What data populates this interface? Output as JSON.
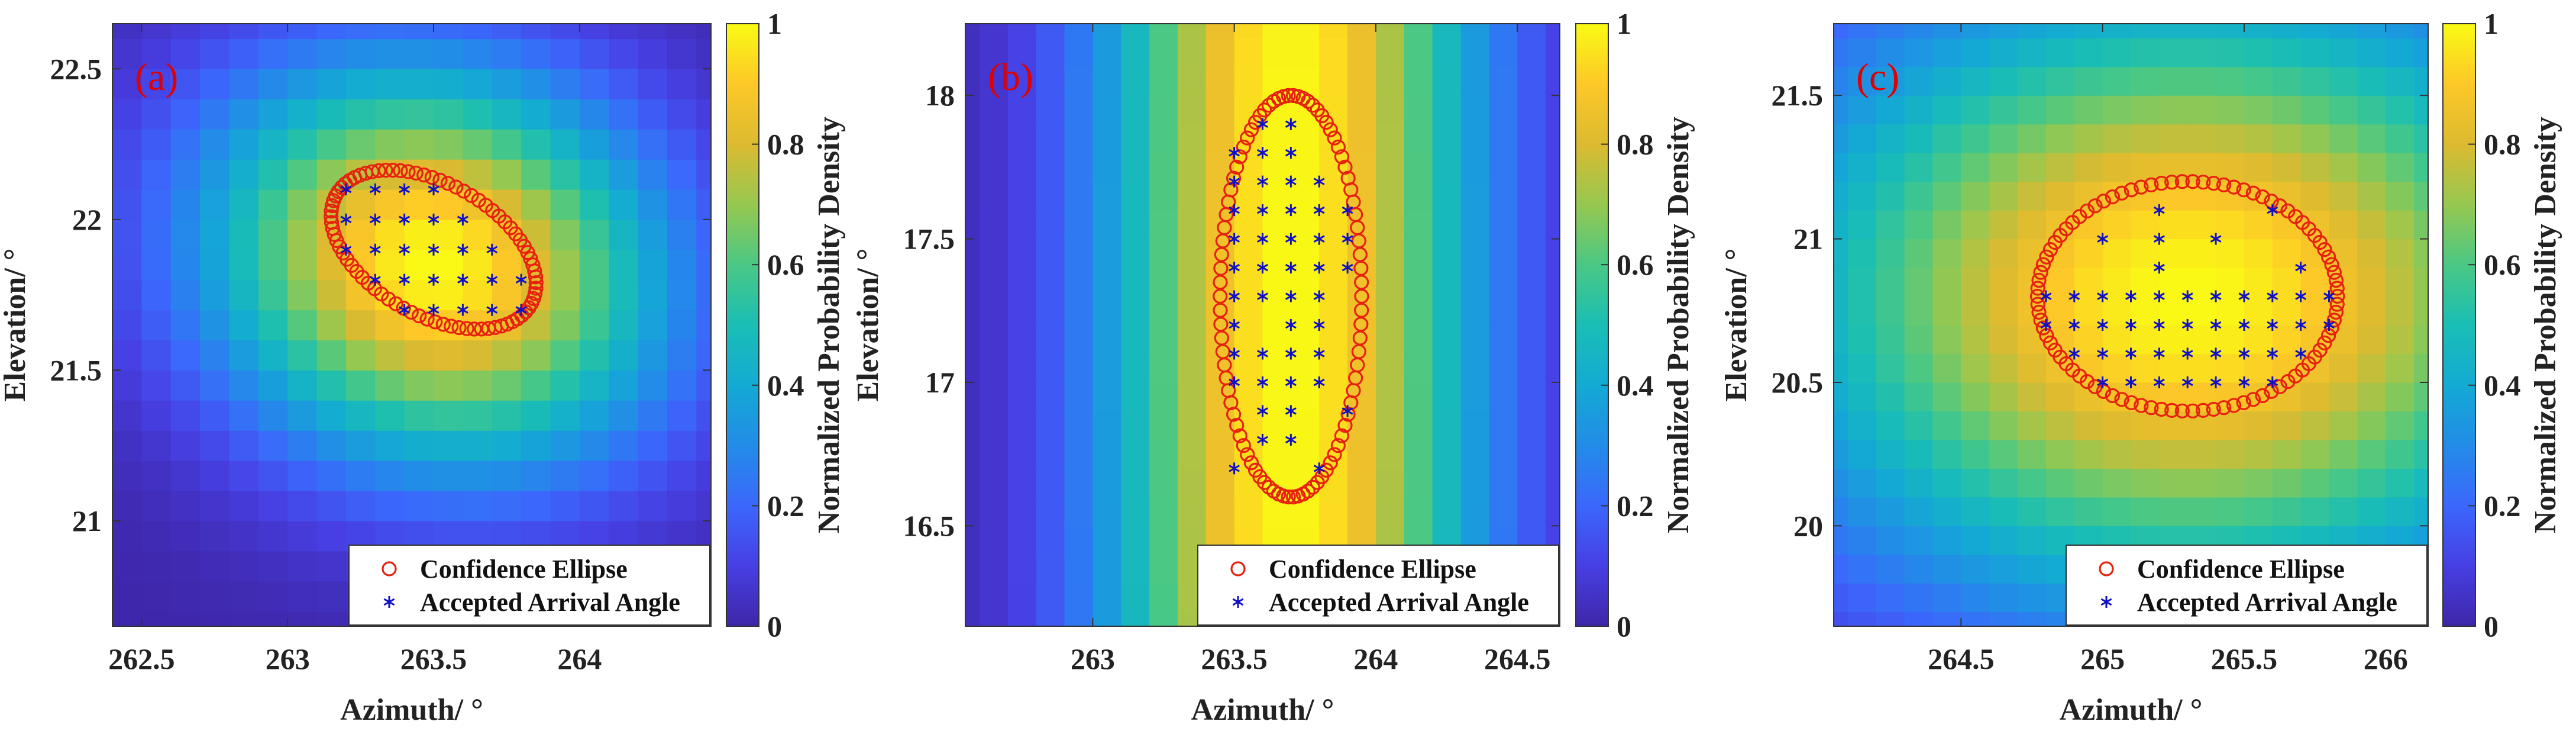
{
  "chart_data": [
    {
      "type": "heatmap",
      "panel_label": "(a)",
      "xlabel": "Azimuth/ °",
      "ylabel": "Elevation/ °",
      "xlim": [
        262.4,
        264.45
      ],
      "ylim": [
        20.65,
        22.65
      ],
      "x_ticks": [
        262.5,
        263,
        263.5,
        264
      ],
      "x_tick_labels": [
        "262.5",
        "263",
        "263.5",
        "264"
      ],
      "y_ticks": [
        21,
        21.5,
        22,
        22.5
      ],
      "y_tick_labels": [
        "21",
        "21.5",
        "22",
        "22.5"
      ],
      "grid_step": [
        0.1,
        0.1
      ],
      "density_center": [
        263.5,
        21.85
      ],
      "density_sigma": [
        0.55,
        0.45
      ],
      "density_rotation_deg": -18,
      "ellipse": {
        "center": [
          263.5,
          21.9
        ],
        "semi_axes": [
          0.38,
          0.22
        ],
        "rotation_deg": -28,
        "markers": 80
      },
      "accepted_points": [
        [
          263.2,
          22.1
        ],
        [
          263.3,
          22.1
        ],
        [
          263.4,
          22.1
        ],
        [
          263.5,
          22.1
        ],
        [
          263.2,
          22.0
        ],
        [
          263.3,
          22.0
        ],
        [
          263.4,
          22.0
        ],
        [
          263.5,
          22.0
        ],
        [
          263.6,
          22.0
        ],
        [
          263.2,
          21.9
        ],
        [
          263.3,
          21.9
        ],
        [
          263.4,
          21.9
        ],
        [
          263.5,
          21.9
        ],
        [
          263.6,
          21.9
        ],
        [
          263.7,
          21.9
        ],
        [
          263.3,
          21.8
        ],
        [
          263.4,
          21.8
        ],
        [
          263.5,
          21.8
        ],
        [
          263.6,
          21.8
        ],
        [
          263.7,
          21.8
        ],
        [
          263.8,
          21.8
        ],
        [
          263.4,
          21.7
        ],
        [
          263.5,
          21.7
        ],
        [
          263.6,
          21.7
        ],
        [
          263.7,
          21.7
        ],
        [
          263.8,
          21.7
        ]
      ],
      "colorbar": {
        "label": "Normalized Probability Density",
        "ticks": [
          0,
          0.2,
          0.4,
          0.6,
          0.8,
          1
        ],
        "tick_labels": [
          "0",
          "0.2",
          "0.4",
          "0.6",
          "0.8",
          "1"
        ]
      },
      "legend": {
        "entries": [
          "Confidence Ellipse",
          "Accepted Arrival Angle"
        ],
        "location": "bottom-right"
      }
    },
    {
      "type": "heatmap",
      "panel_label": "(b)",
      "xlabel": "Azimuth/ °",
      "ylabel": "Elevation/ °",
      "xlim": [
        262.55,
        264.65
      ],
      "ylim": [
        16.15,
        18.25
      ],
      "x_ticks": [
        263,
        263.5,
        264,
        264.5
      ],
      "x_tick_labels": [
        "263",
        "263.5",
        "264",
        "264.5"
      ],
      "y_ticks": [
        16.5,
        17,
        17.5,
        18
      ],
      "y_tick_labels": [
        "16.5",
        "17",
        "17.5",
        "18"
      ],
      "grid_step": [
        0.1,
        0.1
      ],
      "density_center": [
        263.7,
        17.3
      ],
      "density_sigma": [
        0.45,
        6.0
      ],
      "density_rotation_deg": 0,
      "ellipse": {
        "center": [
          263.7,
          17.3
        ],
        "semi_axes": [
          0.25,
          0.7
        ],
        "rotation_deg": 0,
        "markers": 90
      },
      "accepted_points": [
        [
          263.6,
          17.9
        ],
        [
          263.7,
          17.9
        ],
        [
          263.5,
          17.8
        ],
        [
          263.6,
          17.8
        ],
        [
          263.7,
          17.8
        ],
        [
          263.5,
          17.7
        ],
        [
          263.6,
          17.7
        ],
        [
          263.7,
          17.7
        ],
        [
          263.8,
          17.7
        ],
        [
          263.5,
          17.6
        ],
        [
          263.6,
          17.6
        ],
        [
          263.7,
          17.6
        ],
        [
          263.8,
          17.6
        ],
        [
          263.9,
          17.6
        ],
        [
          263.5,
          17.5
        ],
        [
          263.6,
          17.5
        ],
        [
          263.7,
          17.5
        ],
        [
          263.8,
          17.5
        ],
        [
          263.9,
          17.5
        ],
        [
          263.5,
          17.4
        ],
        [
          263.6,
          17.4
        ],
        [
          263.7,
          17.4
        ],
        [
          263.8,
          17.4
        ],
        [
          263.9,
          17.4
        ],
        [
          263.5,
          17.3
        ],
        [
          263.6,
          17.3
        ],
        [
          263.7,
          17.3
        ],
        [
          263.8,
          17.3
        ],
        [
          263.5,
          17.2
        ],
        [
          263.7,
          17.2
        ],
        [
          263.8,
          17.2
        ],
        [
          263.5,
          17.1
        ],
        [
          263.6,
          17.1
        ],
        [
          263.7,
          17.1
        ],
        [
          263.8,
          17.1
        ],
        [
          263.5,
          17.0
        ],
        [
          263.6,
          17.0
        ],
        [
          263.7,
          17.0
        ],
        [
          263.8,
          17.0
        ],
        [
          263.6,
          16.9
        ],
        [
          263.7,
          16.9
        ],
        [
          263.9,
          16.9
        ],
        [
          263.6,
          16.8
        ],
        [
          263.7,
          16.8
        ],
        [
          263.5,
          16.7
        ],
        [
          263.8,
          16.7
        ]
      ],
      "colorbar": {
        "label": "Normalized Probability Density",
        "ticks": [
          0,
          0.2,
          0.4,
          0.6,
          0.8,
          1
        ],
        "tick_labels": [
          "0",
          "0.2",
          "0.4",
          "0.6",
          "0.8",
          "1"
        ]
      },
      "legend": {
        "entries": [
          "Confidence Ellipse",
          "Accepted Arrival Angle"
        ],
        "location": "bottom-right"
      }
    },
    {
      "type": "heatmap",
      "panel_label": "(c)",
      "xlabel": "Azimuth/ °",
      "ylabel": "Elevation/ °",
      "xlim": [
        264.05,
        266.15
      ],
      "ylim": [
        19.65,
        21.75
      ],
      "x_ticks": [
        264.5,
        265,
        265.5,
        266
      ],
      "x_tick_labels": [
        "264.5",
        "265",
        "265.5",
        "266"
      ],
      "y_ticks": [
        20,
        20.5,
        21,
        21.5
      ],
      "y_tick_labels": [
        "20",
        "20.5",
        "21",
        "21.5"
      ],
      "grid_step": [
        0.1,
        0.1
      ],
      "density_center": [
        265.3,
        20.8
      ],
      "density_sigma": [
        1.0,
        0.75
      ],
      "density_rotation_deg": 0,
      "ellipse": {
        "center": [
          265.3,
          20.8
        ],
        "semi_axes": [
          0.53,
          0.4
        ],
        "rotation_deg": 0,
        "markers": 90
      },
      "accepted_points": [
        [
          265.2,
          21.1
        ],
        [
          265.6,
          21.1
        ],
        [
          265.0,
          21.0
        ],
        [
          265.2,
          21.0
        ],
        [
          265.4,
          21.0
        ],
        [
          265.2,
          20.9
        ],
        [
          265.7,
          20.9
        ],
        [
          264.8,
          20.8
        ],
        [
          264.9,
          20.8
        ],
        [
          265.0,
          20.8
        ],
        [
          265.1,
          20.8
        ],
        [
          265.2,
          20.8
        ],
        [
          265.3,
          20.8
        ],
        [
          265.4,
          20.8
        ],
        [
          265.5,
          20.8
        ],
        [
          265.6,
          20.8
        ],
        [
          265.7,
          20.8
        ],
        [
          265.8,
          20.8
        ],
        [
          264.8,
          20.7
        ],
        [
          264.9,
          20.7
        ],
        [
          265.0,
          20.7
        ],
        [
          265.1,
          20.7
        ],
        [
          265.2,
          20.7
        ],
        [
          265.3,
          20.7
        ],
        [
          265.4,
          20.7
        ],
        [
          265.5,
          20.7
        ],
        [
          265.6,
          20.7
        ],
        [
          265.7,
          20.7
        ],
        [
          265.8,
          20.7
        ],
        [
          264.9,
          20.6
        ],
        [
          265.0,
          20.6
        ],
        [
          265.1,
          20.6
        ],
        [
          265.2,
          20.6
        ],
        [
          265.3,
          20.6
        ],
        [
          265.4,
          20.6
        ],
        [
          265.5,
          20.6
        ],
        [
          265.6,
          20.6
        ],
        [
          265.7,
          20.6
        ],
        [
          265.0,
          20.5
        ],
        [
          265.1,
          20.5
        ],
        [
          265.2,
          20.5
        ],
        [
          265.3,
          20.5
        ],
        [
          265.4,
          20.5
        ],
        [
          265.5,
          20.5
        ],
        [
          265.6,
          20.5
        ]
      ],
      "colorbar": {
        "label": "Normalized Probability Density",
        "ticks": [
          0,
          0.2,
          0.4,
          0.6,
          0.8,
          1
        ],
        "tick_labels": [
          "0",
          "0.2",
          "0.4",
          "0.6",
          "0.8",
          "1"
        ]
      },
      "legend": {
        "entries": [
          "Confidence Ellipse",
          "Accepted Arrival Angle"
        ],
        "location": "bottom-right"
      }
    }
  ]
}
